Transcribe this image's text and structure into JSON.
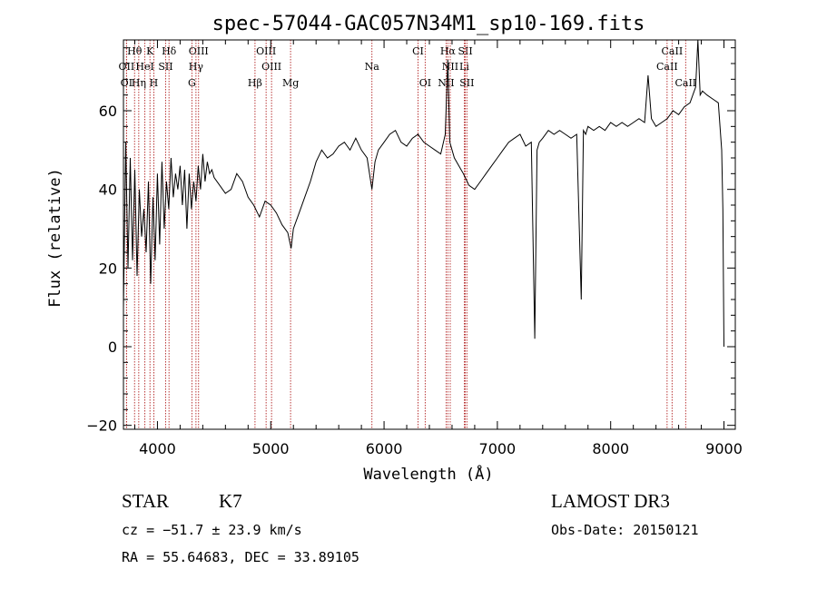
{
  "chart_data": {
    "type": "line",
    "title": "spec-57044-GAC057N34M1_sp10-169.fits",
    "xlabel": "Wavelength (Å)",
    "ylabel": "Flux (relative)",
    "xlim": [
      3700,
      9100
    ],
    "ylim": [
      -21,
      78
    ],
    "x_ticks": [
      4000,
      5000,
      6000,
      7000,
      8000,
      9000
    ],
    "y_ticks": [
      -20,
      0,
      20,
      40,
      60
    ],
    "grid": false,
    "series": [
      {
        "x": [
          3700,
          3720,
          3740,
          3760,
          3780,
          3800,
          3820,
          3840,
          3860,
          3880,
          3900,
          3920,
          3940,
          3960,
          3980,
          4000,
          4020,
          4040,
          4060,
          4080,
          4100,
          4120,
          4140,
          4160,
          4180,
          4200,
          4220,
          4240,
          4260,
          4280,
          4300,
          4320,
          4340,
          4360,
          4380,
          4400,
          4420,
          4440,
          4460,
          4480,
          4500,
          4550,
          4600,
          4650,
          4700,
          4750,
          4800,
          4850,
          4900,
          4950,
          5000,
          5050,
          5100,
          5150,
          5180,
          5200,
          5250,
          5300,
          5350,
          5400,
          5450,
          5500,
          5550,
          5600,
          5650,
          5700,
          5750,
          5800,
          5850,
          5893,
          5920,
          5950,
          6000,
          6050,
          6100,
          6150,
          6200,
          6250,
          6300,
          6350,
          6400,
          6450,
          6500,
          6540,
          6563,
          6580,
          6620,
          6660,
          6700,
          6750,
          6800,
          6850,
          6900,
          6950,
          7000,
          7050,
          7100,
          7150,
          7200,
          7250,
          7300,
          7330,
          7350,
          7370,
          7400,
          7450,
          7500,
          7550,
          7600,
          7650,
          7700,
          7740,
          7760,
          7780,
          7800,
          7850,
          7900,
          7950,
          8000,
          8050,
          8100,
          8150,
          8200,
          8250,
          8300,
          8330,
          8360,
          8400,
          8450,
          8500,
          8550,
          8600,
          8650,
          8700,
          8750,
          8770,
          8790,
          8810,
          8850,
          8900,
          8950,
          8980,
          8990,
          9000
        ],
        "y": [
          10,
          52,
          20,
          48,
          22,
          45,
          18,
          40,
          28,
          35,
          24,
          42,
          16,
          38,
          22,
          44,
          26,
          47,
          30,
          42,
          35,
          48,
          38,
          44,
          40,
          46,
          36,
          45,
          30,
          44,
          35,
          42,
          37,
          46,
          40,
          49,
          42,
          47,
          44,
          45,
          43,
          41,
          39,
          40,
          44,
          42,
          38,
          36,
          33,
          37,
          36,
          34,
          31,
          29,
          25,
          30,
          34,
          38,
          42,
          47,
          50,
          48,
          49,
          51,
          52,
          50,
          53,
          50,
          48,
          40,
          47,
          50,
          52,
          54,
          55,
          52,
          51,
          53,
          54,
          52,
          51,
          50,
          49,
          54,
          73,
          52,
          48,
          46,
          44,
          41,
          40,
          42,
          44,
          46,
          48,
          50,
          52,
          53,
          54,
          51,
          52,
          2,
          50,
          52,
          53,
          55,
          54,
          55,
          54,
          53,
          54,
          12,
          55,
          54,
          56,
          55,
          56,
          55,
          57,
          56,
          57,
          56,
          57,
          58,
          57,
          69,
          58,
          56,
          57,
          58,
          60,
          59,
          61,
          62,
          66,
          78,
          64,
          65,
          64,
          63,
          62,
          50,
          35,
          0
        ]
      }
    ],
    "spectral_lines": [
      {
        "label": "Hθ",
        "wl": 3798,
        "row": 0
      },
      {
        "label": "K",
        "wl": 3934,
        "row": 0
      },
      {
        "label": "Hδ",
        "wl": 4102,
        "row": 0
      },
      {
        "label": "OIII",
        "wl": 4363,
        "row": 0
      },
      {
        "label": "OIII",
        "wl": 4959,
        "row": 0
      },
      {
        "label": "CI",
        "wl": 6300,
        "row": 0
      },
      {
        "label": "Hα",
        "wl": 6563,
        "row": 0
      },
      {
        "label": "SII",
        "wl": 6717,
        "row": 0
      },
      {
        "label": "CaII",
        "wl": 8542,
        "row": 0
      },
      {
        "label": "OII",
        "wl": 3727,
        "row": 1
      },
      {
        "label": "HeI",
        "wl": 3889,
        "row": 1
      },
      {
        "label": "SII",
        "wl": 4072,
        "row": 1
      },
      {
        "label": "Hγ",
        "wl": 4340,
        "row": 1
      },
      {
        "label": "OIII",
        "wl": 5007,
        "row": 1
      },
      {
        "label": "Na",
        "wl": 5893,
        "row": 1
      },
      {
        "label": "NII",
        "wl": 6584,
        "row": 1
      },
      {
        "label": "Li",
        "wl": 6708,
        "row": 1
      },
      {
        "label": "CaII",
        "wl": 8498,
        "row": 1
      },
      {
        "label": "OI",
        "wl": 3727,
        "row": 2
      },
      {
        "label": "Hη",
        "wl": 3835,
        "row": 2
      },
      {
        "label": "H",
        "wl": 3968,
        "row": 2
      },
      {
        "label": "G",
        "wl": 4304,
        "row": 2
      },
      {
        "label": "Hβ",
        "wl": 4861,
        "row": 2
      },
      {
        "label": "Mg",
        "wl": 5175,
        "row": 2
      },
      {
        "label": "OI",
        "wl": 6363,
        "row": 2
      },
      {
        "label": "NII",
        "wl": 6548,
        "row": 2
      },
      {
        "label": "SII",
        "wl": 6731,
        "row": 2
      },
      {
        "label": "CaII",
        "wl": 8662,
        "row": 2
      }
    ]
  },
  "info": {
    "class_label": "STAR",
    "subclass": "K7",
    "survey": "LAMOST DR3",
    "cz": "cz = −51.7 ± 23.9 km/s",
    "obs_date": "Obs-Date: 20150121",
    "coords": "RA =  55.64683, DEC =  33.89105"
  },
  "colors": {
    "spectrum": "#000000",
    "line_markers": "#b22222"
  }
}
